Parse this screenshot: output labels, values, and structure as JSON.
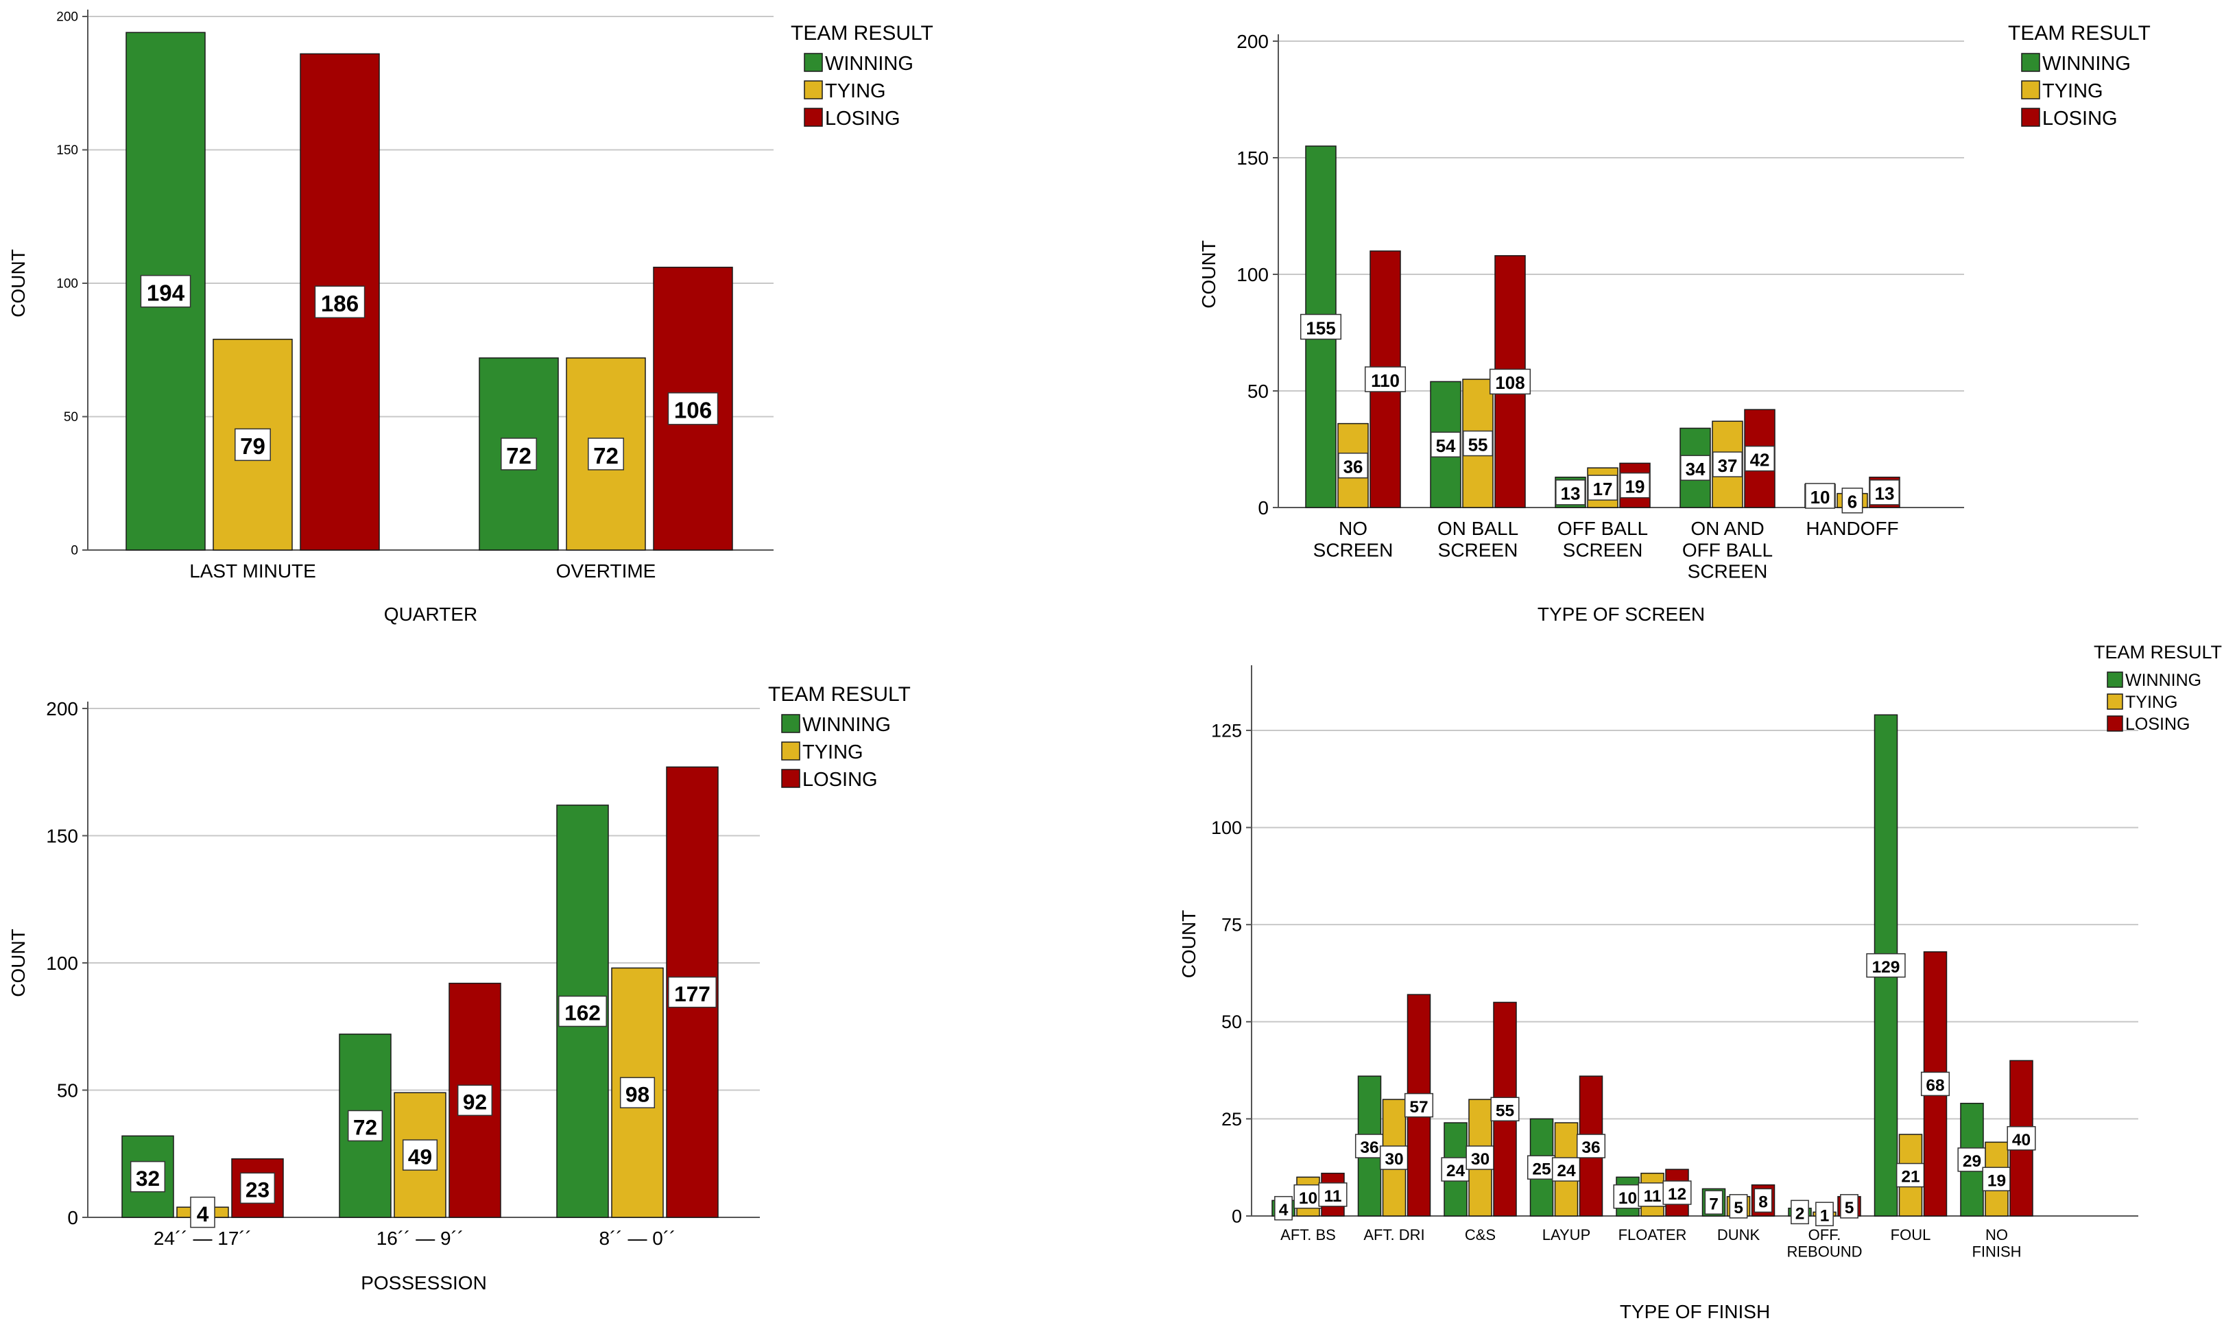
{
  "colors": {
    "winning": "#2e8b2e",
    "tying": "#e0b520",
    "losing": "#a30000",
    "grid": "#c8c8c8",
    "axis": "#555555"
  },
  "chart_data": [
    {
      "type": "bar",
      "xlabel": "QUARTER",
      "ylabel": "COUNT",
      "categories": [
        "LAST MINUTE",
        "OVERTIME"
      ],
      "series": [
        {
          "name": "WINNING",
          "values": [
            194,
            72
          ]
        },
        {
          "name": "TYING",
          "values": [
            79,
            72
          ]
        },
        {
          "name": "LOSING",
          "values": [
            186,
            106
          ]
        }
      ],
      "ylim": [
        0,
        200
      ],
      "yticks": [
        0,
        50,
        100,
        150,
        200
      ],
      "grid": true,
      "legend": {
        "title": "TEAM RESULT",
        "placement": "top-right"
      }
    },
    {
      "type": "bar",
      "xlabel": "TYPE OF SCREEN",
      "ylabel": "COUNT",
      "categories": [
        "NO\nSCREEN",
        "ON BALL\nSCREEN",
        "OFF BALL\nSCREEN",
        "ON AND\nOFF BALL\nSCREEN",
        "HANDOFF"
      ],
      "series": [
        {
          "name": "WINNING",
          "values": [
            155,
            54,
            13,
            34,
            10
          ]
        },
        {
          "name": "TYING",
          "values": [
            36,
            55,
            17,
            37,
            6
          ]
        },
        {
          "name": "LOSING",
          "values": [
            110,
            108,
            19,
            42,
            13
          ]
        }
      ],
      "ylim": [
        0,
        200
      ],
      "yticks": [
        0,
        50,
        100,
        150,
        200
      ],
      "grid": true,
      "legend": {
        "title": "TEAM RESULT",
        "placement": "top-right"
      }
    },
    {
      "type": "bar",
      "xlabel": "POSSESSION",
      "ylabel": "COUNT",
      "categories": [
        "24´´ — 17´´",
        "16´´ — 9´´",
        "8´´ — 0´´"
      ],
      "series": [
        {
          "name": "WINNING",
          "values": [
            32,
            72,
            162
          ]
        },
        {
          "name": "TYING",
          "values": [
            4,
            49,
            98
          ]
        },
        {
          "name": "LOSING",
          "values": [
            23,
            92,
            177
          ]
        }
      ],
      "ylim": [
        0,
        200
      ],
      "yticks": [
        0,
        50,
        100,
        150,
        200
      ],
      "grid": true,
      "legend": {
        "title": "TEAM RESULT",
        "placement": "top-right"
      }
    },
    {
      "type": "bar",
      "xlabel": "TYPE OF FINISH",
      "ylabel": "COUNT",
      "categories": [
        "AFT. BS",
        "AFT. DRI",
        "C&S",
        "LAYUP",
        "FLOATER",
        "DUNK",
        "OFF.\nREBOUND",
        "FOUL",
        "NO\nFINISH"
      ],
      "series": [
        {
          "name": "WINNING",
          "values": [
            4,
            36,
            24,
            25,
            10,
            7,
            2,
            129,
            29
          ]
        },
        {
          "name": "TYING",
          "values": [
            10,
            30,
            30,
            24,
            11,
            5,
            1,
            21,
            19
          ]
        },
        {
          "name": "LOSING",
          "values": [
            11,
            57,
            55,
            36,
            12,
            8,
            5,
            68,
            40
          ]
        }
      ],
      "ylim": [
        0,
        140
      ],
      "yticks": [
        0,
        25,
        50,
        75,
        100,
        125
      ],
      "grid": true,
      "legend": {
        "title": "TEAM RESULT",
        "placement": "top-right"
      }
    }
  ]
}
